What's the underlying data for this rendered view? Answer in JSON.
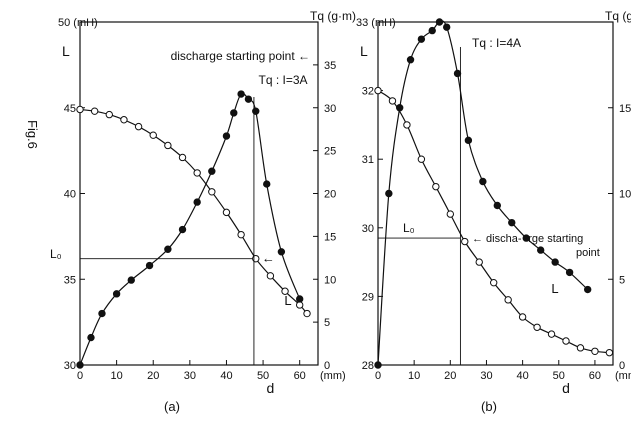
{
  "figure_label": "Fig.6",
  "chart_data": [
    {
      "type": "line",
      "panel_label": "(a)",
      "xlabel": "d",
      "x_unit": "(mm)",
      "left_axis_title": "L",
      "left_axis_unit": "50 (mH)",
      "right_axis_title": "Tq (g·m)",
      "xlim": [
        0,
        65
      ],
      "left_ylim": [
        30,
        50
      ],
      "right_ylim": [
        0,
        40
      ],
      "x_ticks": [
        0,
        10,
        20,
        30,
        40,
        50,
        60
      ],
      "left_ticks": [
        30,
        35,
        40,
        45
      ],
      "right_ticks": [
        0,
        5,
        10,
        15,
        20,
        25,
        30,
        35
      ],
      "tick_labels": {
        "x": [
          "0",
          "10",
          "20",
          "30",
          "40",
          "50",
          "60"
        ],
        "left": [
          "30",
          "35",
          "40",
          "45"
        ],
        "right": [
          "0",
          "5",
          "10",
          "15",
          "20",
          "25",
          "30",
          "35"
        ]
      },
      "series": [
        {
          "name": "L",
          "axis": "left",
          "marker": "open",
          "x": [
            0,
            4,
            8,
            12,
            16,
            20,
            24,
            28,
            32,
            36,
            40,
            44,
            48,
            52,
            56,
            60,
            62
          ],
          "y": [
            44.9,
            44.8,
            44.6,
            44.3,
            43.9,
            43.4,
            42.8,
            42.1,
            41.2,
            40.1,
            38.9,
            37.6,
            36.2,
            35.2,
            34.3,
            33.5,
            33.0
          ]
        },
        {
          "name": "Tq",
          "axis": "right",
          "marker": "filled",
          "x": [
            0,
            3,
            6,
            10,
            14,
            19,
            24,
            28,
            32,
            36,
            40,
            42,
            44,
            46,
            48,
            51,
            55,
            60
          ],
          "y": [
            0,
            3.2,
            6.0,
            8.3,
            9.9,
            11.6,
            13.5,
            15.8,
            19.0,
            22.6,
            26.7,
            29.4,
            31.6,
            31.0,
            29.6,
            21.1,
            13.2,
            7.7
          ]
        }
      ],
      "annotations": {
        "title": "discharge starting point ←",
        "tq_label": "Tq : I=3A",
        "lo_label": "L₀",
        "l_label": "L"
      },
      "markers": {
        "vertical_x": 47.5,
        "lo_value": 36.2
      }
    },
    {
      "type": "line",
      "panel_label": "(b)",
      "xlabel": "d",
      "x_unit": "(mm)",
      "left_axis_title": "L",
      "left_axis_unit": "33 (mH)",
      "right_axis_title": "Tq (g·m",
      "xlim": [
        0,
        65
      ],
      "left_ylim": [
        28,
        33
      ],
      "right_ylim": [
        0,
        20
      ],
      "x_ticks": [
        0,
        10,
        20,
        30,
        40,
        50,
        60
      ],
      "left_ticks": [
        28,
        29,
        30,
        31,
        32
      ],
      "right_ticks": [
        0,
        5,
        10,
        15
      ],
      "tick_labels": {
        "x": [
          "0",
          "10",
          "20",
          "30",
          "40",
          "50",
          "60"
        ],
        "left": [
          "28",
          "29",
          "30",
          "31",
          "32"
        ],
        "right": [
          "0",
          "5",
          "10",
          "15"
        ]
      },
      "series": [
        {
          "name": "L",
          "axis": "left",
          "marker": "open",
          "x": [
            0,
            4,
            8,
            12,
            16,
            20,
            24,
            28,
            32,
            36,
            40,
            44,
            48,
            52,
            56,
            60,
            64
          ],
          "y": [
            32.0,
            31.85,
            31.5,
            31.0,
            30.6,
            30.2,
            29.8,
            29.5,
            29.2,
            28.95,
            28.7,
            28.55,
            28.45,
            28.35,
            28.25,
            28.2,
            28.18
          ]
        },
        {
          "name": "Tq",
          "axis": "right",
          "marker": "filled",
          "x": [
            0,
            3,
            6,
            9,
            12,
            15,
            17,
            19,
            22,
            25,
            29,
            33,
            37,
            41,
            45,
            49,
            53,
            58
          ],
          "y": [
            0,
            10.0,
            15.0,
            17.8,
            19.0,
            19.5,
            20.0,
            19.7,
            17.0,
            13.1,
            10.7,
            9.3,
            8.3,
            7.4,
            6.7,
            6.0,
            5.4,
            4.4
          ]
        }
      ],
      "annotations": {
        "title": "discha- -rge starting\npoint",
        "tq_label": "Tq : I=4A",
        "lo_label": "L₀",
        "l_label": "L"
      },
      "markers": {
        "vertical_x": 22.8,
        "lo_value": 29.85
      }
    }
  ]
}
